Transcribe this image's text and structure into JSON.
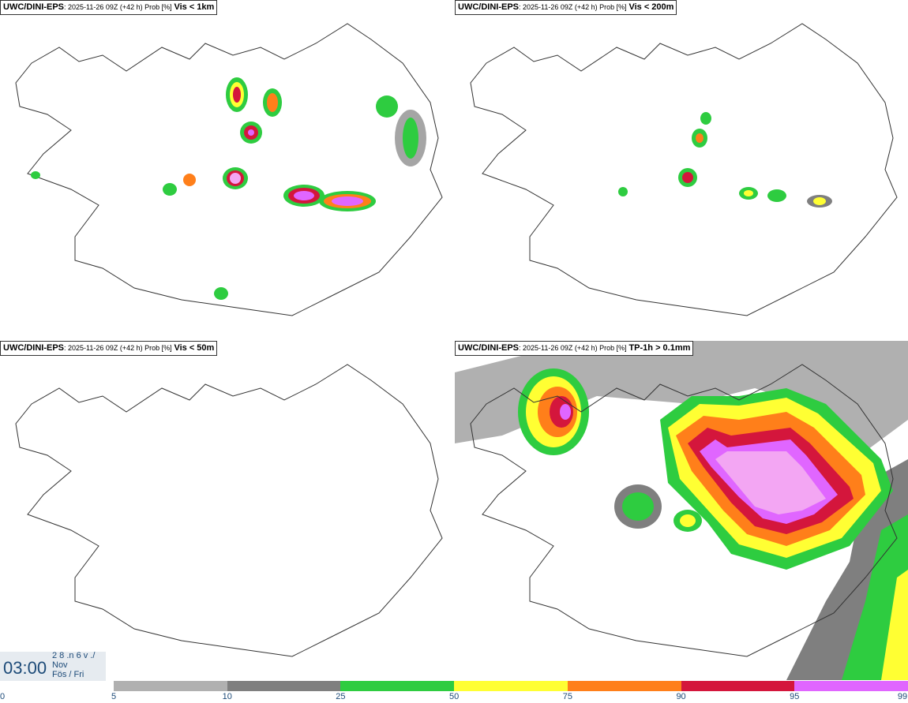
{
  "panels": [
    {
      "model": "UWC/DINI-EPS",
      "meta": ": 2025-11-26 09Z (+42 h) Prob [%]",
      "condition": "Vis < 1km"
    },
    {
      "model": "UWC/DINI-EPS",
      "meta": ": 2025-11-26 09Z (+42 h) Prob [%]",
      "condition": "Vis < 200m"
    },
    {
      "model": "UWC/DINI-EPS",
      "meta": ": 2025-11-26 09Z (+42 h) Prob [%]",
      "condition": "Vis < 50m"
    },
    {
      "model": "UWC/DINI-EPS",
      "meta": ": 2025-11-26 09Z (+42 h) Prob [%]",
      "condition": "TP-1h > 0.1mm"
    }
  ],
  "time": {
    "clock": "03:00",
    "day": "2 8 .n 6 v ./",
    "month": "Nov",
    "weekday": "Fös / Fri"
  },
  "colorbar": {
    "ticks": [
      "0",
      "5",
      "10",
      "25",
      "50",
      "75",
      "90",
      "95",
      "99"
    ],
    "colors": [
      "#b0b0b0",
      "#7f7f7f",
      "#2ecc40",
      "#ffff33",
      "#ff7f1a",
      "#d4163c",
      "#e066ff"
    ]
  }
}
